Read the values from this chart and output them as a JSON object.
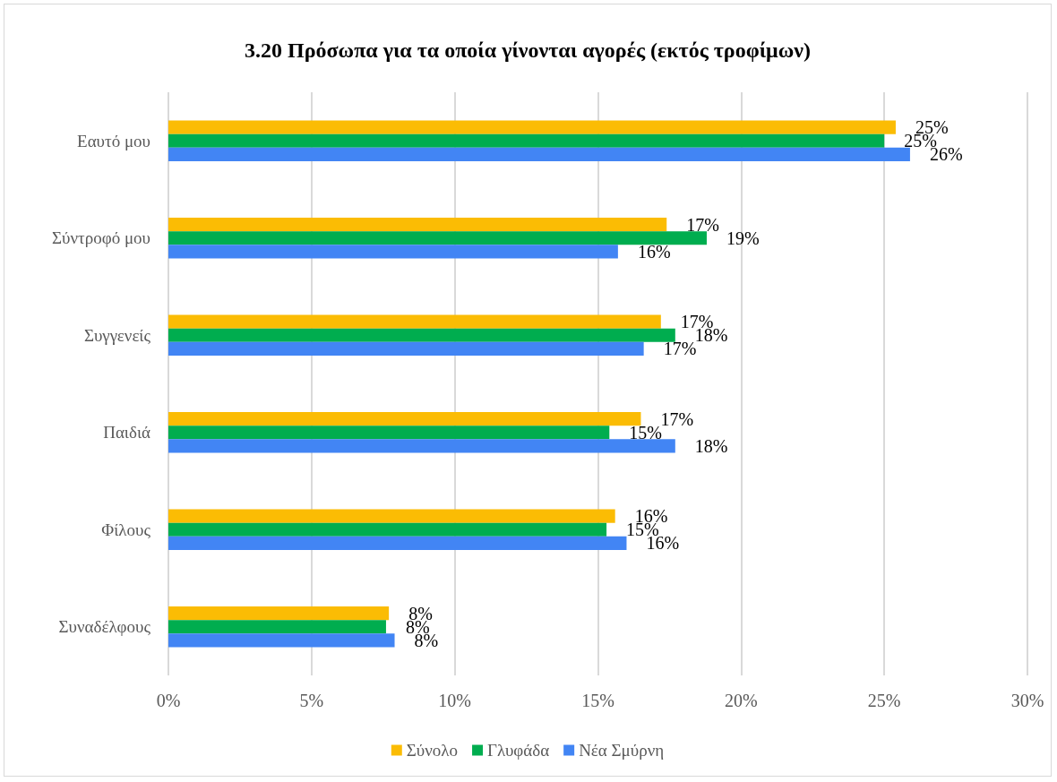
{
  "chart_data": {
    "type": "bar",
    "orientation": "horizontal",
    "title": "3.20 Πρόσωπα για τα οποία γίνονται αγορές (εκτός τροφίμων)",
    "categories": [
      "Εαυτό μου",
      "Σύντροφό μου",
      "Συγγενείς",
      "Παιδιά",
      "Φίλους",
      "Συναδέλφους"
    ],
    "series": [
      {
        "name": "Σύνολο",
        "color": "#fbbc04",
        "values": [
          25.4,
          17.4,
          17.2,
          16.5,
          15.6,
          7.7
        ],
        "value_labels": [
          "25%",
          "17%",
          "17%",
          "17%",
          "16%",
          "8%"
        ]
      },
      {
        "name": "Γλυφάδα",
        "color": "#00ad4f",
        "values": [
          25.0,
          18.8,
          17.7,
          15.4,
          15.3,
          7.6
        ],
        "value_labels": [
          "25%",
          "19%",
          "18%",
          "15%",
          "15%",
          "8%"
        ]
      },
      {
        "name": "Νέα Σμύρνη",
        "color": "#4285f4",
        "values": [
          25.9,
          15.7,
          16.6,
          17.7,
          16.0,
          7.9
        ],
        "value_labels": [
          "26%",
          "16%",
          "17%",
          "18%",
          "16%",
          "8%"
        ]
      }
    ],
    "xlim": [
      0,
      30
    ],
    "xticks": [
      {
        "value": 0,
        "label": "0%"
      },
      {
        "value": 5,
        "label": "5%"
      },
      {
        "value": 10,
        "label": "10%"
      },
      {
        "value": 15,
        "label": "15%"
      },
      {
        "value": 20,
        "label": "20%"
      },
      {
        "value": 25,
        "label": "25%"
      },
      {
        "value": 30,
        "label": "30%"
      }
    ],
    "grid": "x",
    "legend": "bottom"
  }
}
